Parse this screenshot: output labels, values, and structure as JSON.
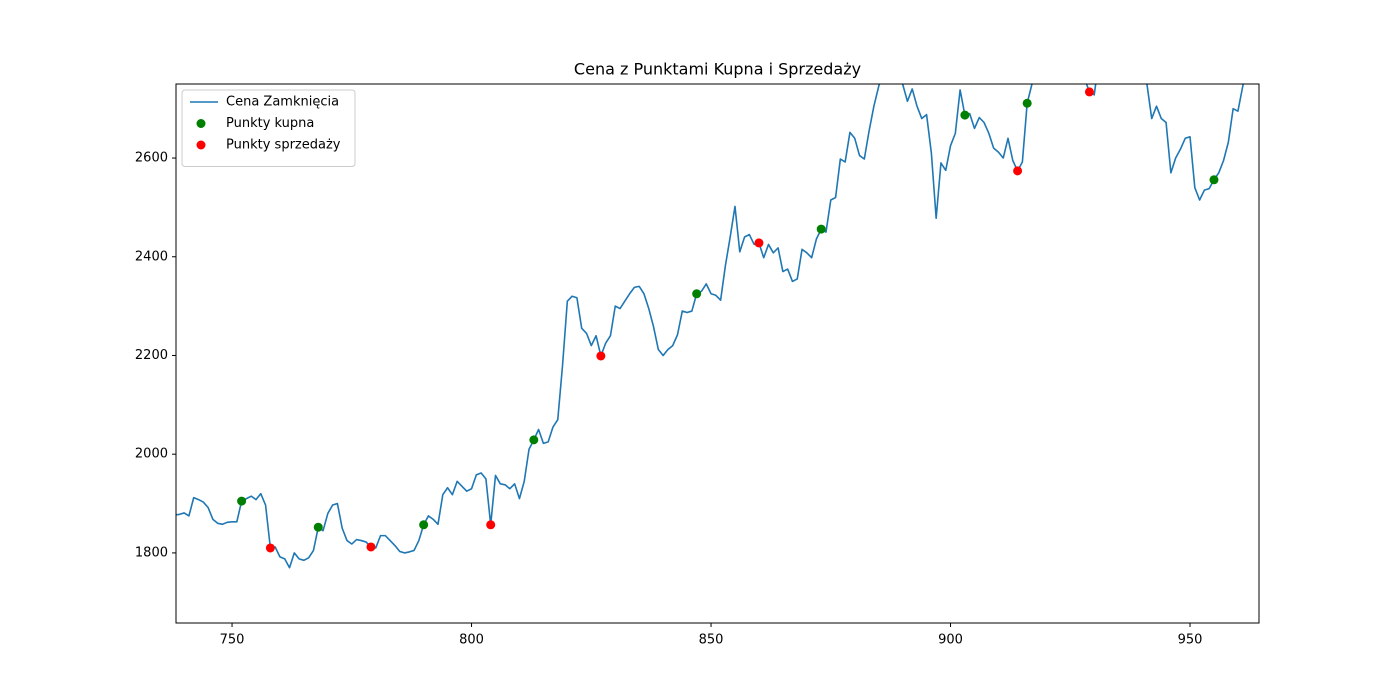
{
  "chart_data": {
    "type": "line",
    "title": "Cena z Punktami Kupna i Sprzedaży",
    "xlim": [
      738.3,
      964.4
    ],
    "ylim": [
      1658,
      2750
    ],
    "xticks": [
      750,
      800,
      850,
      900,
      950
    ],
    "yticks": [
      1800,
      2000,
      2200,
      2400,
      2600
    ],
    "legend": "upper left",
    "series": [
      {
        "name": "Cena Zamknięcia",
        "type": "line",
        "color": "#1f77b4",
        "x": [
          738,
          739,
          740,
          741,
          742,
          743,
          744,
          745,
          746,
          747,
          748,
          749,
          750,
          751,
          752,
          753,
          754,
          755,
          756,
          757,
          758,
          759,
          760,
          761,
          762,
          763,
          764,
          765,
          766,
          767,
          768,
          769,
          770,
          771,
          772,
          773,
          774,
          775,
          776,
          777,
          778,
          779,
          780,
          781,
          782,
          783,
          784,
          785,
          786,
          787,
          788,
          789,
          790,
          791,
          792,
          793,
          794,
          795,
          796,
          797,
          798,
          799,
          800,
          801,
          802,
          803,
          804,
          805,
          806,
          807,
          808,
          809,
          810,
          811,
          812,
          813,
          814,
          815,
          816,
          817,
          818,
          819,
          820,
          821,
          822,
          823,
          824,
          825,
          826,
          827,
          828,
          829,
          830,
          831,
          832,
          833,
          834,
          835,
          836,
          837,
          838,
          839,
          840,
          841,
          842,
          843,
          844,
          845,
          846,
          847,
          848,
          849,
          850,
          851,
          852,
          853,
          854,
          855,
          856,
          857,
          858,
          859,
          860,
          861,
          862,
          863,
          864,
          865,
          866,
          867,
          868,
          869,
          870,
          871,
          872,
          873,
          874,
          875,
          876,
          877,
          878,
          879,
          880,
          881,
          882,
          883,
          884,
          885,
          886,
          887,
          888,
          889,
          890,
          891,
          892,
          893,
          894,
          895,
          896,
          897,
          898,
          899,
          900,
          901,
          902,
          903,
          904,
          905,
          906,
          907,
          908,
          909,
          910,
          911,
          912,
          913,
          914,
          915,
          916,
          917,
          918,
          919,
          920,
          921,
          922,
          923,
          924,
          925,
          926,
          927,
          928,
          929,
          930,
          931,
          932,
          933,
          934,
          935,
          936,
          937,
          938,
          939,
          940,
          941,
          942,
          943,
          944,
          945,
          946,
          947,
          948,
          949,
          950,
          951,
          952,
          953,
          954,
          955,
          956,
          957,
          958,
          959,
          960,
          961,
          962
        ],
        "values": [
          1877,
          1878,
          1881,
          1875,
          1912,
          1908,
          1903,
          1892,
          1868,
          1860,
          1858,
          1862,
          1863,
          1863,
          1905,
          1910,
          1915,
          1908,
          1920,
          1897,
          1810,
          1812,
          1792,
          1788,
          1770,
          1800,
          1788,
          1785,
          1790,
          1805,
          1852,
          1845,
          1880,
          1897,
          1900,
          1850,
          1825,
          1818,
          1827,
          1825,
          1822,
          1812,
          1810,
          1835,
          1835,
          1825,
          1815,
          1803,
          1800,
          1802,
          1805,
          1825,
          1857,
          1875,
          1868,
          1858,
          1918,
          1932,
          1918,
          1945,
          1935,
          1925,
          1930,
          1958,
          1962,
          1950,
          1857,
          1957,
          1940,
          1938,
          1930,
          1940,
          1910,
          1945,
          2010,
          2029,
          2050,
          2022,
          2025,
          2055,
          2070,
          2180,
          2310,
          2320,
          2317,
          2255,
          2245,
          2220,
          2240,
          2199,
          2225,
          2240,
          2300,
          2295,
          2310,
          2325,
          2338,
          2340,
          2325,
          2295,
          2258,
          2212,
          2200,
          2212,
          2220,
          2242,
          2290,
          2287,
          2290,
          2325,
          2330,
          2345,
          2325,
          2322,
          2312,
          2382,
          2440,
          2502,
          2410,
          2440,
          2445,
          2425,
          2428,
          2398,
          2425,
          2408,
          2418,
          2370,
          2375,
          2350,
          2355,
          2415,
          2408,
          2398,
          2436,
          2456,
          2450,
          2515,
          2520,
          2598,
          2592,
          2652,
          2640,
          2605,
          2598,
          2655,
          2705,
          2745,
          2780,
          2800,
          2790,
          2770,
          2750,
          2715,
          2740,
          2705,
          2680,
          2688,
          2610,
          2478,
          2590,
          2575,
          2625,
          2650,
          2738,
          2687,
          2690,
          2660,
          2682,
          2672,
          2650,
          2620,
          2612,
          2600,
          2640,
          2595,
          2574,
          2592,
          2711,
          2750,
          2790,
          2820,
          2830,
          2810,
          2840,
          2820,
          2800,
          2815,
          2790,
          2770,
          2760,
          2734,
          2728,
          2800,
          2830,
          2850,
          2840,
          2820,
          2830,
          2810,
          2800,
          2790,
          2770,
          2750,
          2680,
          2705,
          2680,
          2672,
          2570,
          2600,
          2618,
          2640,
          2643,
          2540,
          2515,
          2535,
          2538,
          2556,
          2570,
          2595,
          2632,
          2700,
          2695,
          2745,
          2790
        ]
      },
      {
        "name": "Punkty kupna",
        "type": "scatter",
        "color": "#008000",
        "x": [
          752,
          768,
          790,
          813,
          847,
          873,
          903,
          916,
          955
        ],
        "values": [
          1905,
          1852,
          1857,
          2029,
          2325,
          2456,
          2687,
          2711,
          2556
        ]
      },
      {
        "name": "Punkty sprzedaży",
        "type": "scatter",
        "color": "#ff0000",
        "x": [
          758,
          779,
          804,
          827,
          860,
          914,
          929
        ],
        "values": [
          1810,
          1812,
          1857,
          2199,
          2428,
          2574,
          2734
        ]
      }
    ]
  }
}
